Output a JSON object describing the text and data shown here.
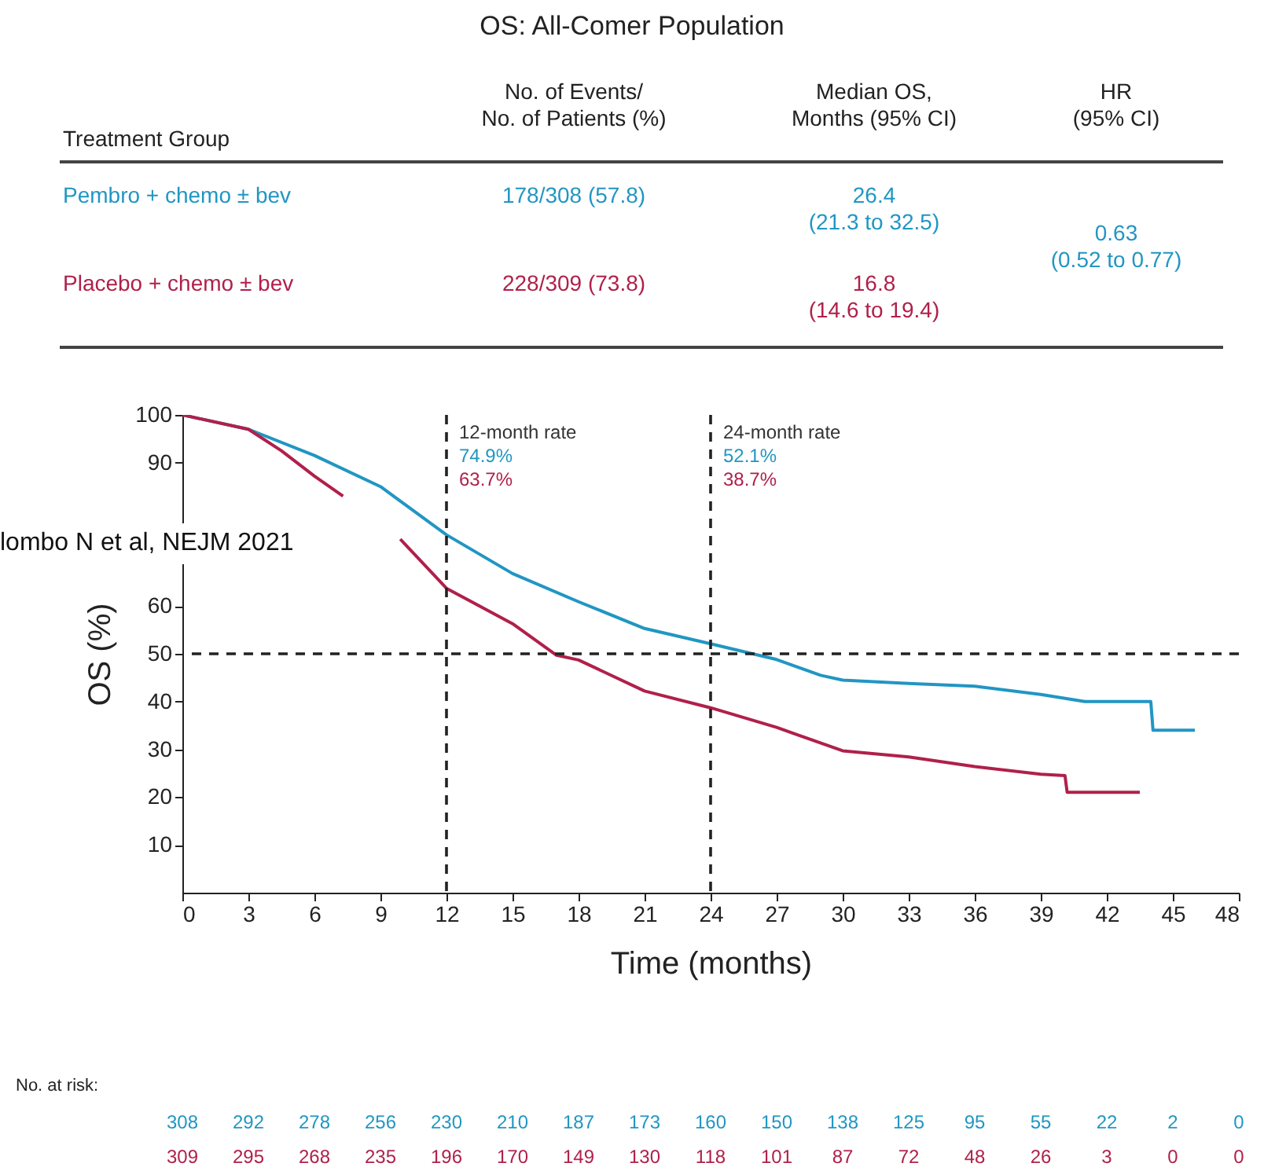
{
  "chart_data": {
    "type": "line",
    "title": "OS: All-Comer Population",
    "xlabel": "Time (months)",
    "ylabel": "OS (%)",
    "xlim": [
      0,
      48
    ],
    "xticks": [
      0,
      3,
      6,
      9,
      12,
      15,
      18,
      21,
      24,
      27,
      30,
      33,
      36,
      39,
      42,
      45,
      48
    ],
    "ylim": [
      0,
      100
    ],
    "yticks": [
      10,
      20,
      30,
      40,
      50,
      60,
      90,
      100
    ],
    "grid": false,
    "legend": false,
    "line_style": "solid",
    "series": [
      {
        "name": "Pembro + chemo ± bev",
        "color": "#2196c3",
        "x": [
          0,
          3,
          6,
          9,
          12,
          15,
          18,
          21,
          24,
          27,
          29,
          30,
          33,
          36,
          39,
          41,
          44,
          44.1,
          46
        ],
        "values": [
          100,
          97,
          91.5,
          85,
          74.9,
          66.8,
          60.9,
          55.3,
          52.1,
          48.8,
          45.5,
          44.5,
          43.8,
          43.2,
          41.5,
          40,
          40,
          34,
          34
        ]
      },
      {
        "name": "Placebo + chemo ± bev",
        "color": "#b0204a",
        "x": [
          0,
          3,
          4.5,
          6,
          7.3,
          8.5,
          9.9,
          12,
          15,
          17,
          18,
          21,
          24,
          27,
          30,
          33,
          36,
          39,
          40.1,
          40.2,
          43.5
        ],
        "values": [
          100,
          97,
          92.5,
          87.2,
          83,
          null,
          74,
          63.7,
          56.3,
          49.7,
          48.7,
          42.2,
          38.7,
          34.6,
          29.7,
          28.4,
          26.4,
          24.8,
          24.5,
          21,
          21
        ]
      }
    ],
    "ref_lines": [
      {
        "axis": "x",
        "value": 12,
        "label": "12-month rate",
        "line_style": "dashed",
        "color": "#222222"
      },
      {
        "axis": "x",
        "value": 24,
        "label": "24-month rate",
        "line_style": "dashed",
        "color": "#222222"
      },
      {
        "axis": "y",
        "value": 50,
        "label": null,
        "line_style": "dashed",
        "color": "#222222"
      }
    ],
    "annotations": [
      "Treatment Group",
      "No. of Events/\nNo. of Patients (%)",
      "Median OS,\nMonths (95% CI)",
      "HR\n(95% CI)",
      "178/308 (57.8)",
      "26.4\n(21.3 to 32.5)",
      "0.63\n(0.52 to 0.77)",
      "228/309 (73.8)",
      "16.8\n(14.6 to 19.4)",
      "74.9%",
      "63.7%",
      "52.1%",
      "38.7%",
      "lombo N et al, NEJM 2021",
      "No. at risk:",
      "308",
      "292",
      "278",
      "256",
      "230",
      "210",
      "187",
      "173",
      "160",
      "150",
      "138",
      "125",
      "95",
      "55",
      "22",
      "2",
      "0",
      "309",
      "295",
      "268",
      "235",
      "196",
      "170",
      "149",
      "130",
      "118",
      "101",
      "87",
      "72",
      "48",
      "26",
      "3",
      "0",
      "0"
    ]
  }
}
